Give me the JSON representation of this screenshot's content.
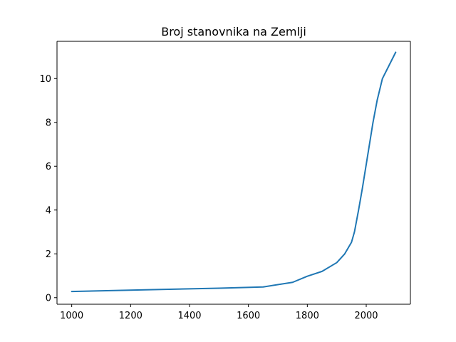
{
  "chart_data": {
    "type": "line",
    "title": "Broj stanovnika na Zemlji",
    "xlabel": "",
    "ylabel": "",
    "xlim": [
      950,
      2150
    ],
    "ylim": [
      -0.3,
      11.7
    ],
    "x_ticks": [
      1000,
      1200,
      1400,
      1600,
      1800,
      2000
    ],
    "y_ticks": [
      0,
      2,
      4,
      6,
      8,
      10
    ],
    "grid": false,
    "series": [
      {
        "color": "#1f77b4",
        "x": [
          1000,
          1250,
          1500,
          1650,
          1750,
          1800,
          1850,
          1900,
          1927,
          1950,
          1960,
          1974,
          1987,
          1999,
          2011,
          2023,
          2037,
          2055,
          2100
        ],
        "y": [
          0.28,
          0.36,
          0.43,
          0.49,
          0.7,
          0.98,
          1.2,
          1.6,
          2.0,
          2.53,
          3.0,
          4.0,
          5.0,
          6.0,
          7.0,
          8.0,
          9.0,
          10.0,
          11.2
        ]
      }
    ]
  }
}
